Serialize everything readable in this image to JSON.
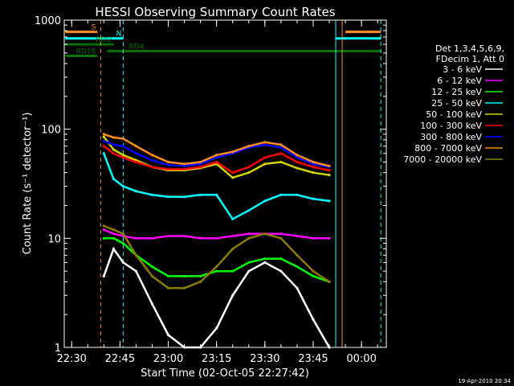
{
  "chart_data": {
    "type": "line",
    "title": "HESSI Observing Summary Count Rates",
    "xlabel": "Start Time (02-Oct-05 22:27:42)",
    "ylabel": "Count Rate (s⁻¹ detector⁻¹)",
    "yscale": "log",
    "ylim": [
      1,
      1000
    ],
    "xlim": [
      "22:27:42",
      "00:07:42"
    ],
    "x_ticks": [
      "22:30",
      "22:45",
      "23:00",
      "23:15",
      "23:30",
      "23:45",
      "00:00"
    ],
    "y_ticks": [
      "1",
      "10",
      "100",
      "1000"
    ],
    "footer_date": "19-Apr-2010 20:34",
    "legend_header": [
      "Det 1,3,4,5,6,9,",
      "FDecim 1, Att 0"
    ],
    "legend_position": "right",
    "flags": [
      {
        "label": "S",
        "color": "#ff8c1a",
        "y": 780,
        "segments": [
          [
            "22:28",
            "22:38"
          ],
          [
            "23:55",
            "00:06"
          ]
        ]
      },
      {
        "label": "N",
        "color": "#00ffff",
        "y": 680,
        "segments": [
          [
            "22:28",
            "22:46"
          ],
          [
            "23:52",
            "00:06"
          ]
        ]
      },
      {
        "label": "RDO",
        "color": "#007000",
        "y": 600,
        "segments": [
          [
            "22:28",
            "22:43"
          ]
        ]
      },
      {
        "label": "RD4",
        "color": "#007000",
        "y": 520,
        "segments": [
          [
            "22:41",
            "22:53"
          ],
          [
            "22:53",
            "23:20"
          ],
          [
            "23:20",
            "23:40"
          ],
          [
            "23:40",
            "00:06"
          ]
        ]
      },
      {
        "label": "RD16",
        "color": "#007000",
        "y": 470,
        "segments": [
          [
            "22:28",
            "22:38"
          ]
        ]
      }
    ],
    "vlines": [
      {
        "t": "22:39",
        "color": "#ff8c1a",
        "dash": true
      },
      {
        "t": "22:46",
        "color": "#00ffff",
        "dash": true
      },
      {
        "t": "23:52",
        "color": "#00ffff",
        "dash": false
      },
      {
        "t": "23:54",
        "color": "#ff8c1a",
        "dash": false
      },
      {
        "t": "00:06",
        "color": "#00ffff",
        "dash": true
      }
    ],
    "x": [
      "22:40",
      "22:43",
      "22:46",
      "22:50",
      "22:55",
      "23:00",
      "23:05",
      "23:10",
      "23:15",
      "23:20",
      "23:25",
      "23:30",
      "23:35",
      "23:40",
      "23:45",
      "23:50"
    ],
    "series": [
      {
        "name": "3 - 6 keV",
        "color": "#ffffff",
        "values": [
          4.5,
          8,
          6,
          5,
          2.5,
          1.3,
          1,
          1,
          1.5,
          3,
          5,
          6,
          5,
          3.5,
          1.8,
          1
        ]
      },
      {
        "name": "6 - 12 keV",
        "color": "#ff00ff",
        "values": [
          12,
          11,
          10.5,
          10,
          10,
          10.5,
          10.5,
          10,
          10,
          10.5,
          11,
          11,
          11,
          10.5,
          10,
          10
        ]
      },
      {
        "name": "12 - 25 keV",
        "color": "#00ff00",
        "values": [
          10,
          10,
          9,
          7,
          5.5,
          4.5,
          4.5,
          4.5,
          5,
          5,
          6,
          6.5,
          6.5,
          5.5,
          4.5,
          4
        ]
      },
      {
        "name": "25 - 50 keV",
        "color": "#00ffff",
        "values": [
          60,
          35,
          30,
          27,
          25,
          24,
          24,
          25,
          25,
          15,
          18,
          22,
          25,
          25,
          23,
          22
        ]
      },
      {
        "name": "50 - 100 keV",
        "color": "#d4d400",
        "values": [
          85,
          65,
          58,
          52,
          45,
          42,
          42,
          44,
          48,
          36,
          40,
          48,
          50,
          44,
          40,
          38
        ]
      },
      {
        "name": "100 - 300 keV",
        "color": "#ff0000",
        "values": [
          70,
          60,
          55,
          50,
          45,
          43,
          43,
          45,
          50,
          40,
          45,
          55,
          60,
          50,
          45,
          42
        ]
      },
      {
        "name": "300 - 800 keV",
        "color": "#0000ff",
        "values": [
          78,
          72,
          70,
          60,
          52,
          47,
          46,
          48,
          55,
          60,
          68,
          72,
          68,
          55,
          48,
          45
        ]
      },
      {
        "name": "800 - 7000 keV",
        "color": "#ff8c1a",
        "values": [
          90,
          84,
          82,
          70,
          58,
          50,
          48,
          50,
          58,
          62,
          70,
          76,
          72,
          58,
          50,
          46
        ]
      },
      {
        "name": "7000 - 20000 keV",
        "color": "#8b7d00",
        "values": [
          13,
          12,
          11,
          7,
          4.5,
          3.5,
          3.5,
          4,
          5.5,
          8,
          10,
          11,
          10,
          7,
          5,
          4
        ]
      }
    ]
  }
}
